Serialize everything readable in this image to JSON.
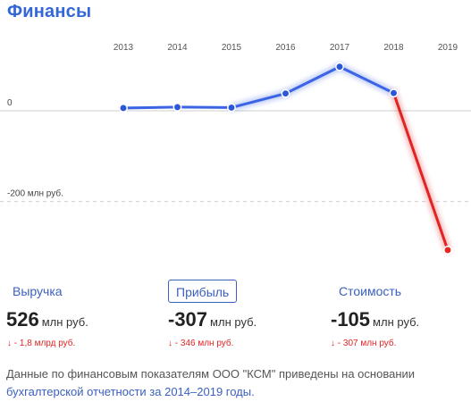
{
  "title": "Финансы",
  "tabs": [
    {
      "label": "Выручка",
      "active": false
    },
    {
      "label": "Прибыль",
      "active": true
    },
    {
      "label": "Стоимость",
      "active": false
    }
  ],
  "metrics": [
    {
      "value": "526",
      "unit": "млн руб.",
      "delta": "↓ - 1,8 млрд руб."
    },
    {
      "value": "-307",
      "unit": "млн руб.",
      "delta": "↓ - 346 млн руб."
    },
    {
      "value": "-105",
      "unit": "млн руб.",
      "delta": "↓ - 307 млн руб."
    }
  ],
  "footnote": {
    "text": "Данные по финансовым показателям ООО \"КСМ\" приведены на основании ",
    "highlight": "бухгалтерской отчетности за 2014–2019 годы."
  },
  "colors": {
    "accent": "#3a5fbf",
    "line": "#3b64e4",
    "negative": "#e02424"
  },
  "chart_data": {
    "type": "line",
    "x": [
      "2013",
      "2014",
      "2015",
      "2016",
      "2017",
      "2018",
      "2019"
    ],
    "series": [
      {
        "values": [
          6,
          8,
          7,
          38,
          97,
          39,
          -307
        ]
      }
    ],
    "reference_lines": [
      {
        "value": 0,
        "label": "0"
      },
      {
        "value": -200,
        "label": "-200 млн руб."
      }
    ],
    "ylim": [
      -320,
      120
    ],
    "grid": false,
    "negative_color": "#e02424",
    "positive_color": "#3b64e4"
  }
}
